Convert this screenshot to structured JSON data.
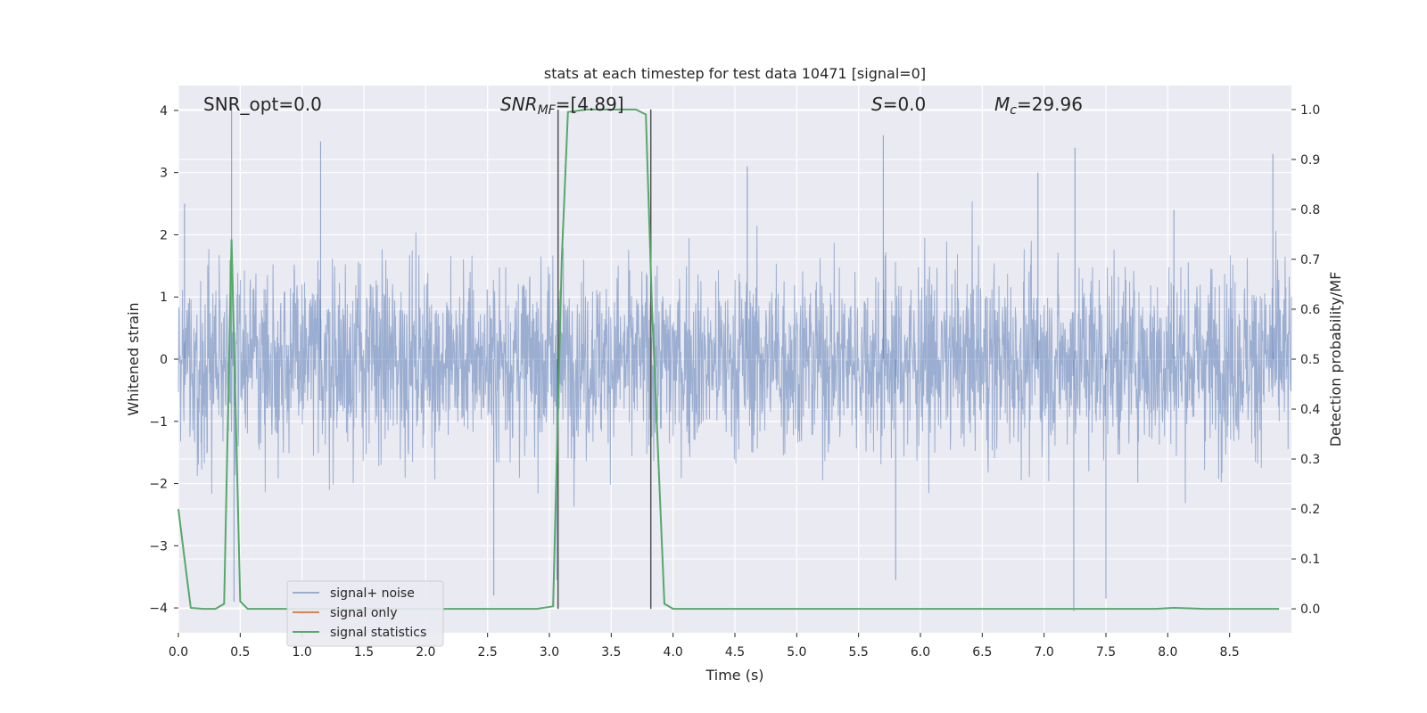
{
  "chart_data": {
    "type": "line",
    "title": "stats at each timestep for test data 10471 [signal=0]",
    "xlabel": "Time (s)",
    "ylabel": "Whitened strain",
    "ylabel_right": "Detection probability/MF",
    "xlim": [
      0.0,
      9.0
    ],
    "ylim": [
      -4.4,
      4.4
    ],
    "ylim_right": [
      -0.048,
      1.048
    ],
    "x_ticks": [
      "0.0",
      "0.5",
      "1.0",
      "1.5",
      "2.0",
      "2.5",
      "3.0",
      "3.5",
      "4.0",
      "4.5",
      "5.0",
      "5.5",
      "6.0",
      "6.5",
      "7.0",
      "7.5",
      "8.0",
      "8.5"
    ],
    "y_ticks": [
      "−4",
      "−3",
      "−2",
      "−1",
      "0",
      "1",
      "2",
      "3",
      "4"
    ],
    "y_ticks_right": [
      "0.0",
      "0.1",
      "0.2",
      "0.3",
      "0.4",
      "0.5",
      "0.6",
      "0.7",
      "0.8",
      "0.9",
      "1.0"
    ],
    "grid": true,
    "legend_position": "bottom-left",
    "colors": {
      "noise": "#4c72b0",
      "signal": "#dd8452",
      "stats": "#55a868",
      "background": "#eaeaf2",
      "grid": "#ffffff",
      "vlines": "#555555"
    },
    "annotations": {
      "snr_opt": "SNR_opt=0.0",
      "snr_mf_base": "SNR",
      "snr_mf_sub": "MF",
      "snr_mf_value": "=[4.89]",
      "s_symbol": "S",
      "s_value": "=0.0",
      "mc_base": "M",
      "mc_sub": "c",
      "mc_value": "=29.96"
    },
    "vlines_x": [
      3.07,
      3.82
    ],
    "series": [
      {
        "name": "signal+ noise",
        "kind": "noise",
        "description_range": [
          -4.0,
          4.0
        ],
        "peaks": [
          [
            0.43,
            4.05
          ],
          [
            0.45,
            -3.9
          ],
          [
            1.15,
            3.5
          ],
          [
            2.55,
            -3.8
          ],
          [
            3.06,
            -3.55
          ],
          [
            5.7,
            3.6
          ],
          [
            5.8,
            -3.55
          ],
          [
            7.25,
            3.4
          ],
          [
            7.24,
            -4.05
          ],
          [
            7.5,
            -3.85
          ],
          [
            8.05,
            2.4
          ],
          [
            8.85,
            3.3
          ],
          [
            0.05,
            2.5
          ],
          [
            4.6,
            3.1
          ],
          [
            6.95,
            3.0
          ]
        ]
      },
      {
        "name": "signal only",
        "kind": "signal",
        "values": []
      },
      {
        "name": "signal statistics",
        "kind": "stats",
        "x": [
          0.0,
          0.05,
          0.1,
          0.2,
          0.3,
          0.37,
          0.43,
          0.5,
          0.56,
          0.7,
          1.0,
          1.5,
          2.0,
          2.5,
          2.9,
          3.03,
          3.1,
          3.15,
          3.3,
          3.5,
          3.7,
          3.78,
          3.83,
          3.93,
          4.0,
          4.5,
          5.0,
          5.5,
          6.0,
          6.5,
          7.0,
          7.5,
          7.9,
          8.05,
          8.3,
          8.9
        ],
        "y": [
          0.2,
          0.1,
          0.002,
          0.0,
          0.0,
          0.01,
          0.74,
          0.015,
          0.0,
          0.0,
          0.0,
          0.0,
          0.0,
          0.0,
          0.0,
          0.005,
          0.7,
          0.995,
          1.0,
          1.0,
          1.0,
          0.99,
          0.6,
          0.01,
          0.0,
          0.0,
          0.0,
          0.0,
          0.0,
          0.0,
          0.0,
          0.0,
          0.0,
          0.002,
          0.0,
          0.0
        ]
      }
    ]
  }
}
